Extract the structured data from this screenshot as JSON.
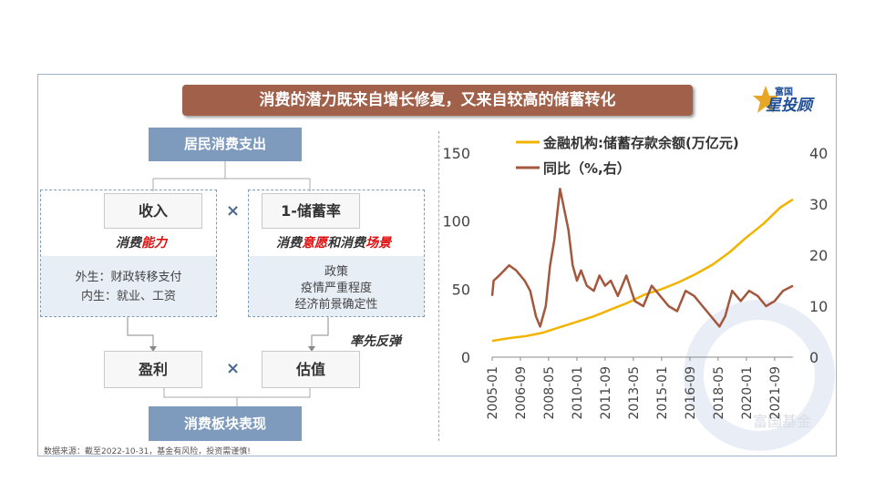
{
  "title": "消费的潜力既来自增长修复，又来自较高的储蓄转化",
  "logo": {
    "line1": "富国",
    "line2": "星投顾"
  },
  "diagram": {
    "top": "居民消费支出",
    "income": "收入",
    "income_tag_a": "消费",
    "income_tag_b": "能力",
    "savings": "1-储蓄率",
    "savings_tag_a": "消费",
    "savings_tag_b": "意愿",
    "savings_tag_c": "和消费",
    "savings_tag_d": "场景",
    "income_detail_1": "外生：财政转移支付",
    "income_detail_2": "内生：就业、工资",
    "savings_detail_1": "政策",
    "savings_detail_2": "疫情严重程度",
    "savings_detail_3": "经济前景确定性",
    "times": "×",
    "profit": "盈利",
    "valuation": "估值",
    "rebound_note": "率先反弹",
    "bottom": "消费板块表现"
  },
  "source_note": "数据来源：截至2022-10-31，基金有风险，投资需谨慎!",
  "watermark": "富国基金",
  "colors": {
    "series1": "#f2b400",
    "series2": "#a3573d",
    "banner": "#a0604a",
    "box": "#7e9bbd"
  },
  "chart_data": {
    "type": "line",
    "x_ticks": [
      "2005-01",
      "2006-09",
      "2008-05",
      "2010-01",
      "2011-09",
      "2013-05",
      "2015-01",
      "2016-09",
      "2018-05",
      "2020-01",
      "2021-09"
    ],
    "y_left_ticks": [
      "0",
      "50",
      "100",
      "150"
    ],
    "y_right_ticks": [
      "0",
      "10",
      "20",
      "30",
      "40"
    ],
    "ylim_left": [
      0,
      150
    ],
    "ylim_right": [
      0,
      40
    ],
    "legend_position": "top",
    "series": [
      {
        "name": "金融机构:储蓄存款余额(万亿元)",
        "axis": "left",
        "x": [
          "2005-01",
          "2006-01",
          "2007-01",
          "2008-01",
          "2009-01",
          "2010-01",
          "2011-01",
          "2012-01",
          "2013-01",
          "2014-01",
          "2015-01",
          "2016-01",
          "2017-01",
          "2018-01",
          "2019-01",
          "2020-01",
          "2021-01",
          "2022-01",
          "2022-10"
        ],
        "values": [
          12,
          14,
          15.5,
          18,
          22,
          26,
          30,
          35,
          40,
          46,
          50,
          55,
          61,
          68,
          77,
          88,
          98,
          110,
          116
        ]
      },
      {
        "name": "同比（%,右）",
        "axis": "right",
        "x": [
          "2005-01",
          "2005-02",
          "2005-06",
          "2006-01",
          "2006-06",
          "2006-12",
          "2007-04",
          "2007-08",
          "2007-11",
          "2008-03",
          "2008-06",
          "2008-09",
          "2008-11",
          "2009-01",
          "2009-04",
          "2009-07",
          "2009-10",
          "2010-01",
          "2010-04",
          "2010-08",
          "2011-01",
          "2011-05",
          "2011-09",
          "2012-01",
          "2012-06",
          "2012-12",
          "2013-06",
          "2013-12",
          "2014-06",
          "2014-12",
          "2015-06",
          "2015-12",
          "2016-06",
          "2016-12",
          "2017-06",
          "2017-12",
          "2018-06",
          "2018-10",
          "2019-03",
          "2019-09",
          "2020-03",
          "2020-09",
          "2021-03",
          "2021-09",
          "2022-03",
          "2022-10"
        ],
        "values": [
          12,
          15,
          16,
          18,
          17,
          15,
          13,
          8,
          6,
          10,
          18,
          23,
          28,
          33,
          29,
          25,
          18,
          15,
          17,
          14,
          13,
          16,
          14,
          15,
          12,
          16,
          11,
          10,
          14,
          12,
          10,
          9,
          13,
          12,
          10,
          8,
          6,
          8,
          13,
          11,
          13,
          12,
          10,
          11,
          13,
          14
        ]
      }
    ]
  }
}
